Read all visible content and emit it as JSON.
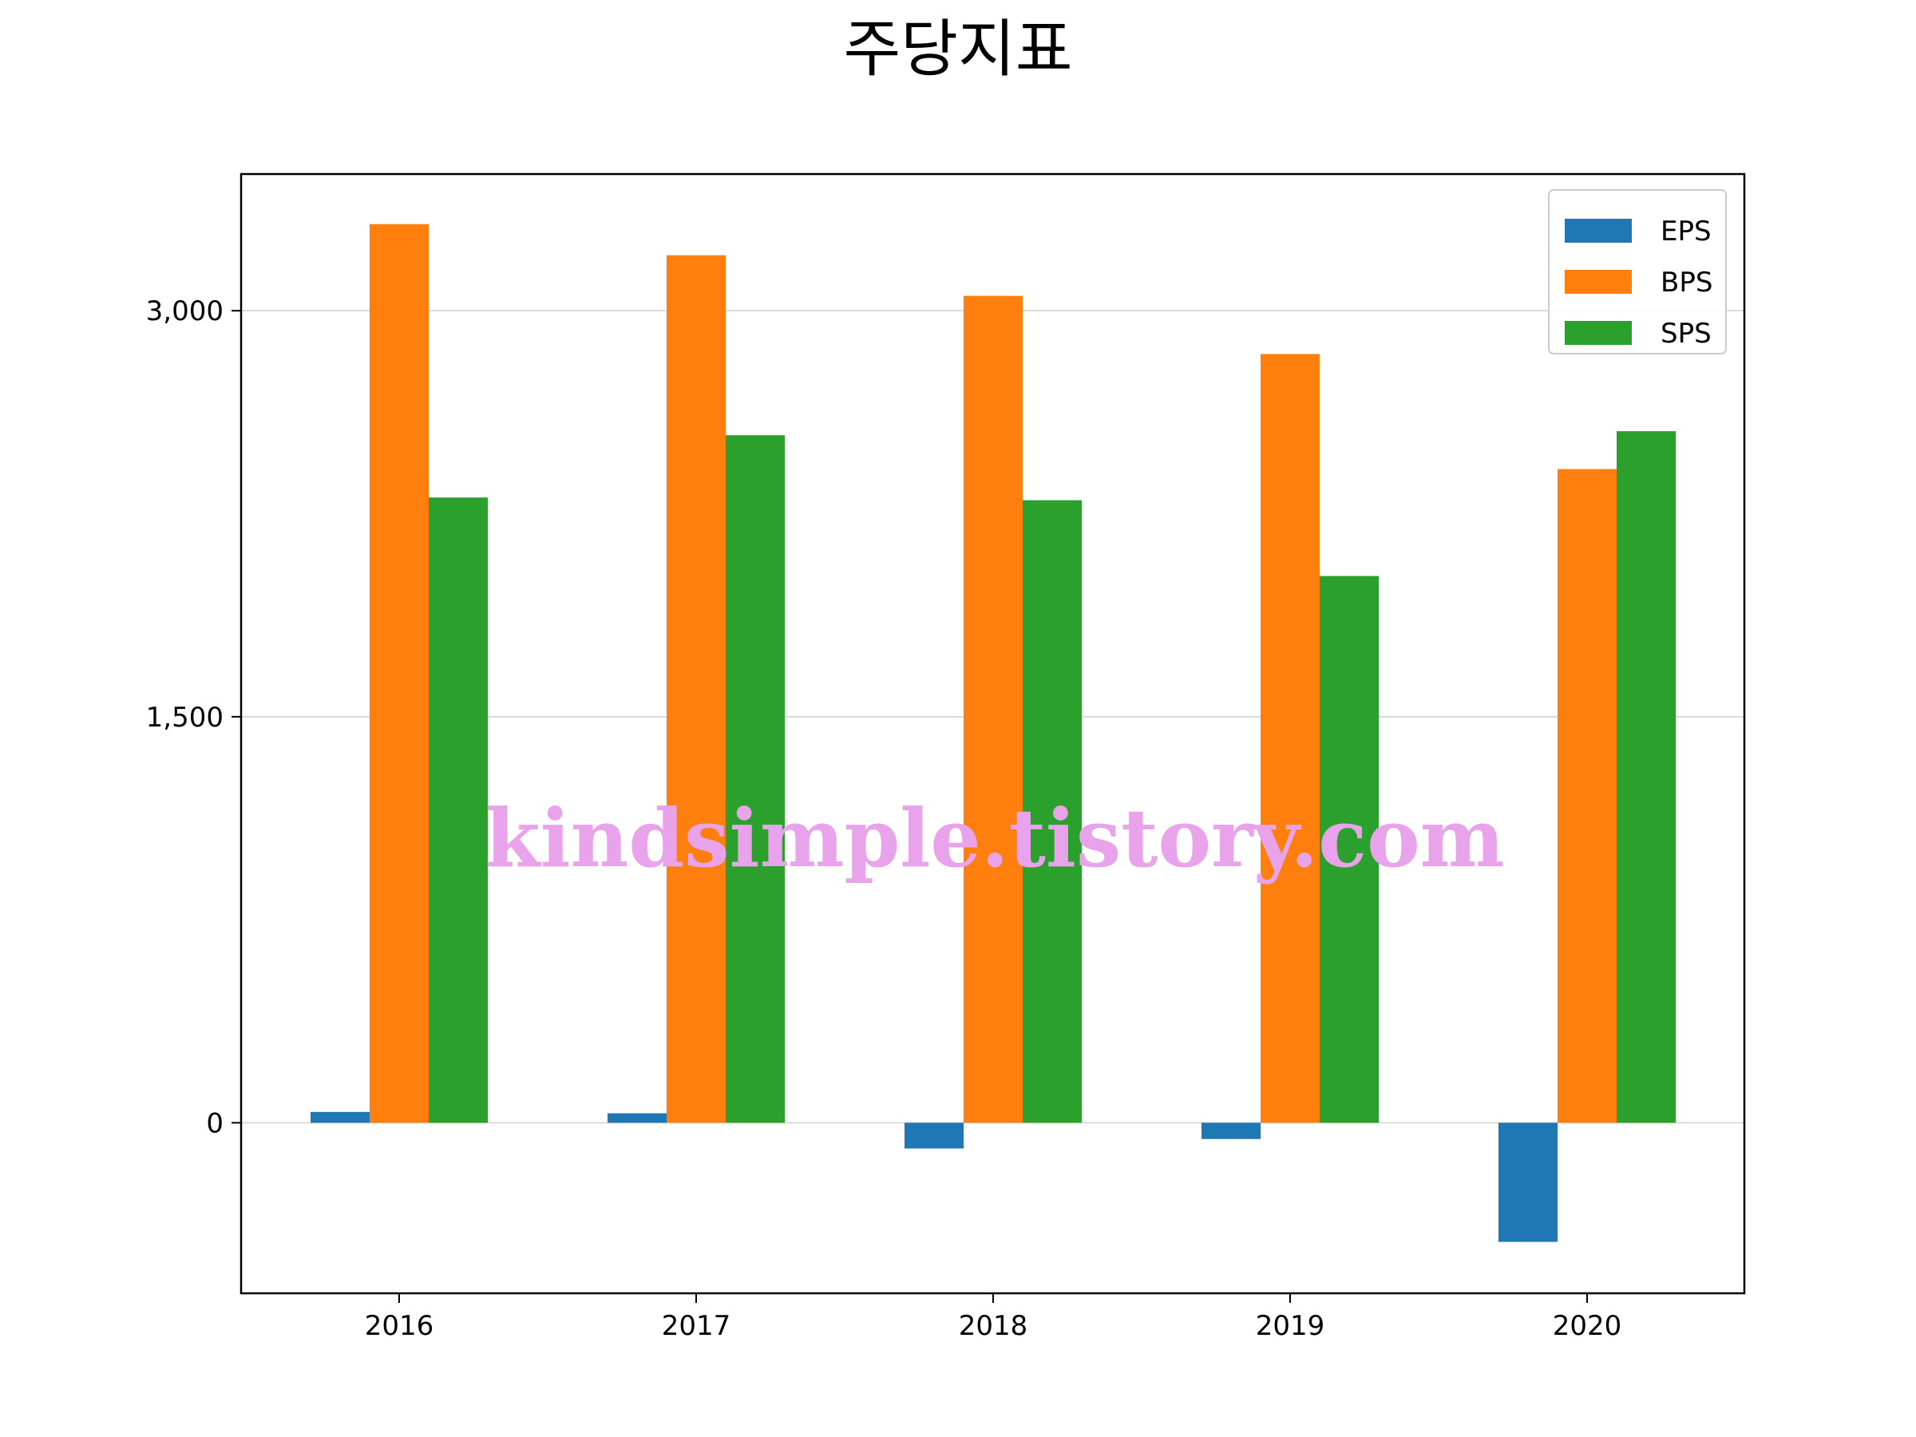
{
  "chart_data": {
    "type": "bar",
    "title": "주당지표",
    "xlabel": "",
    "ylabel": "",
    "categories": [
      "2016",
      "2017",
      "2018",
      "2019",
      "2020"
    ],
    "series": [
      {
        "name": "EPS",
        "color": "#1f77b4",
        "values": [
          40,
          35,
          -95,
          -60,
          -440
        ]
      },
      {
        "name": "BPS",
        "color": "#ff7f0e",
        "values": [
          3320,
          3205,
          3055,
          2840,
          2415
        ]
      },
      {
        "name": "SPS",
        "color": "#2ca02c",
        "values": [
          2310,
          2540,
          2300,
          2020,
          2555
        ]
      }
    ],
    "yticks": [
      0,
      1500,
      3000
    ],
    "ytick_labels": [
      "0",
      "1,500",
      "3,000"
    ],
    "ylim": [
      -630,
      3505
    ],
    "grid": "y",
    "legend_position": "top-right"
  },
  "watermark": "kindsimple.tistory.com"
}
